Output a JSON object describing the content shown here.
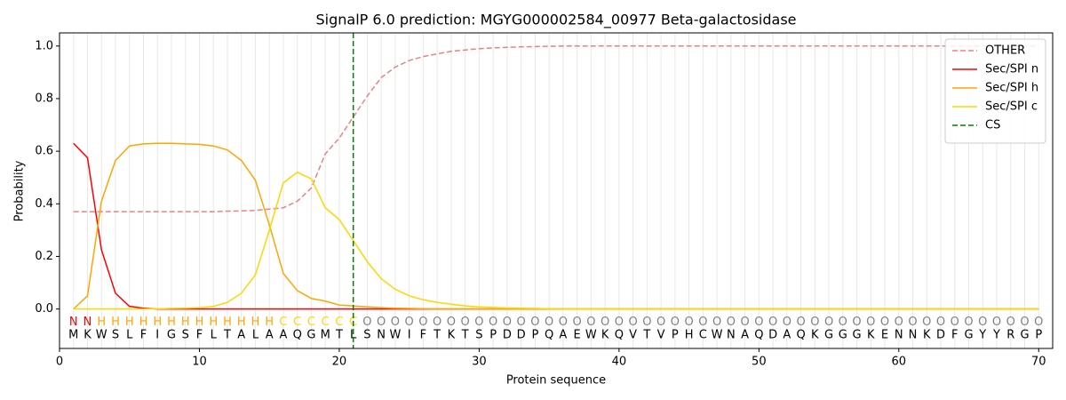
{
  "chart_data": {
    "type": "line",
    "title": "SignalP 6.0 prediction: MGYG000002584_00977 Beta-galactosidase",
    "xlabel": "Protein sequence",
    "ylabel": "Probability",
    "x": [
      1,
      2,
      3,
      4,
      5,
      6,
      7,
      8,
      9,
      10,
      11,
      12,
      13,
      14,
      15,
      16,
      17,
      18,
      19,
      20,
      21,
      22,
      23,
      24,
      25,
      26,
      27,
      28,
      29,
      30,
      31,
      32,
      33,
      34,
      35,
      36,
      37,
      38,
      39,
      40,
      41,
      42,
      43,
      44,
      45,
      46,
      47,
      48,
      49,
      50,
      51,
      52,
      53,
      54,
      55,
      56,
      57,
      58,
      59,
      60,
      61,
      62,
      63,
      64,
      65,
      66,
      67,
      68,
      69,
      70
    ],
    "residues": [
      "M",
      "K",
      "W",
      "S",
      "L",
      "F",
      "I",
      "G",
      "S",
      "F",
      "L",
      "T",
      "A",
      "L",
      "A",
      "A",
      "Q",
      "G",
      "M",
      "T",
      "L",
      "S",
      "N",
      "W",
      "I",
      "F",
      "T",
      "K",
      "T",
      "S",
      "P",
      "D",
      "D",
      "P",
      "Q",
      "A",
      "E",
      "W",
      "K",
      "Q",
      "V",
      "T",
      "V",
      "P",
      "H",
      "C",
      "W",
      "N",
      "A",
      "Q",
      "D",
      "A",
      "Q",
      "K",
      "G",
      "G",
      "G",
      "K",
      "E",
      "N",
      "N",
      "K",
      "D",
      "F",
      "G",
      "Y",
      "Y",
      "R",
      "G",
      "P"
    ],
    "regions": [
      "N",
      "N",
      "H",
      "H",
      "H",
      "H",
      "H",
      "H",
      "H",
      "H",
      "H",
      "H",
      "H",
      "H",
      "H",
      "C",
      "C",
      "C",
      "C",
      "C",
      "C",
      "O",
      "O",
      "O",
      "O",
      "O",
      "O",
      "O",
      "O",
      "O",
      "O",
      "O",
      "O",
      "O",
      "O",
      "O",
      "O",
      "O",
      "O",
      "O",
      "O",
      "O",
      "O",
      "O",
      "O",
      "O",
      "O",
      "O",
      "O",
      "O",
      "O",
      "O",
      "O",
      "O",
      "O",
      "O",
      "O",
      "O",
      "O",
      "O",
      "O",
      "O",
      "O",
      "O",
      "O",
      "O",
      "O",
      "O",
      "O",
      "O"
    ],
    "region_colors": {
      "N": "#ff0000",
      "H": "#ffa500",
      "C": "#ffd700",
      "O": "#808080"
    },
    "series": [
      {
        "name": "OTHER",
        "color": "#f08080",
        "dash": true,
        "values": [
          0.37,
          0.37,
          0.37,
          0.37,
          0.37,
          0.37,
          0.37,
          0.37,
          0.37,
          0.37,
          0.37,
          0.372,
          0.373,
          0.375,
          0.38,
          0.385,
          0.41,
          0.46,
          0.59,
          0.65,
          0.73,
          0.81,
          0.88,
          0.92,
          0.945,
          0.96,
          0.97,
          0.98,
          0.985,
          0.99,
          0.993,
          0.995,
          0.997,
          0.998,
          0.999,
          1,
          1,
          1,
          1,
          1,
          1,
          1,
          1,
          1,
          1,
          1,
          1,
          1,
          1,
          1,
          1,
          1,
          1,
          1,
          1,
          1,
          1,
          1,
          1,
          1,
          1,
          1,
          1,
          1,
          1,
          1,
          1,
          1,
          1,
          1
        ]
      },
      {
        "name": "Sec/SPI n",
        "color": "#ff0000",
        "values": [
          0.63,
          0.575,
          0.225,
          0.06,
          0.01,
          0.003,
          0,
          0,
          0,
          0,
          0,
          0,
          0,
          0,
          0,
          0,
          0,
          0,
          0,
          0,
          0,
          0,
          0,
          0,
          0,
          0,
          0,
          0,
          0,
          0,
          0,
          0,
          0,
          0,
          0,
          0,
          0,
          0,
          0,
          0,
          0,
          0,
          0,
          0,
          0,
          0,
          0,
          0,
          0,
          0,
          0,
          0,
          0,
          0,
          0,
          0,
          0,
          0,
          0,
          0,
          0,
          0,
          0,
          0,
          0,
          0,
          0,
          0,
          0,
          0
        ]
      },
      {
        "name": "Sec/SPI h",
        "color": "#ffa500",
        "values": [
          0,
          0.05,
          0.41,
          0.565,
          0.62,
          0.628,
          0.63,
          0.63,
          0.628,
          0.626,
          0.62,
          0.605,
          0.565,
          0.49,
          0.32,
          0.135,
          0.07,
          0.04,
          0.03,
          0.015,
          0.012,
          0.008,
          0.005,
          0.003,
          0.002,
          0.001,
          0,
          0,
          0,
          0,
          0,
          0,
          0,
          0,
          0,
          0,
          0,
          0,
          0,
          0,
          0,
          0,
          0,
          0,
          0,
          0,
          0,
          0,
          0,
          0,
          0,
          0,
          0,
          0,
          0,
          0,
          0,
          0,
          0,
          0,
          0,
          0,
          0,
          0,
          0,
          0,
          0,
          0,
          0,
          0
        ]
      },
      {
        "name": "Sec/SPI c",
        "color": "#ffd700",
        "values": [
          0,
          0,
          0,
          0,
          0,
          0,
          0.001,
          0.002,
          0.003,
          0.005,
          0.01,
          0.025,
          0.06,
          0.13,
          0.3,
          0.48,
          0.52,
          0.495,
          0.385,
          0.34,
          0.26,
          0.18,
          0.115,
          0.075,
          0.05,
          0.035,
          0.025,
          0.018,
          0.012,
          0.008,
          0.006,
          0.004,
          0.003,
          0.002,
          0.001,
          0,
          0,
          0,
          0,
          0,
          0,
          0,
          0,
          0,
          0,
          0,
          0,
          0,
          0,
          0,
          0,
          0,
          0,
          0,
          0,
          0,
          0,
          0,
          0,
          0,
          0,
          0,
          0,
          0,
          0,
          0,
          0,
          0,
          0,
          0
        ]
      }
    ],
    "cs": {
      "name": "CS",
      "x": 21,
      "color": "#008000"
    },
    "xlim": [
      0,
      71
    ],
    "ylim": [
      -0.15,
      1.05
    ],
    "xticks": [
      0,
      10,
      20,
      30,
      40,
      50,
      60,
      70
    ],
    "yticks": [
      {
        "value": 0,
        "label": "0.0"
      },
      {
        "value": 0.2,
        "label": "0.2"
      },
      {
        "value": 0.4,
        "label": "0.4"
      },
      {
        "value": 0.6,
        "label": "0.6"
      },
      {
        "value": 0.8,
        "label": "0.8"
      },
      {
        "value": 1,
        "label": "1.0"
      }
    ],
    "grid": true,
    "legend": "upper right"
  }
}
